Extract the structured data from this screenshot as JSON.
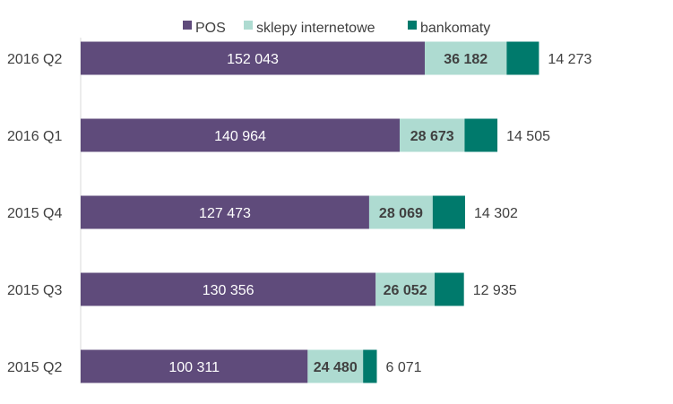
{
  "chart_data": {
    "type": "bar",
    "orientation": "horizontal",
    "stacked": true,
    "categories": [
      "2016 Q2",
      "2016 Q1",
      "2015 Q4",
      "2015 Q3",
      "2015 Q2"
    ],
    "series": [
      {
        "name": "POS",
        "color": "#5f4b7b",
        "values": [
          152043,
          140964,
          127473,
          130356,
          100311
        ],
        "labels": [
          "152 043",
          "140 964",
          "127 473",
          "130 356",
          "100 311"
        ]
      },
      {
        "name": "sklepy internetowe",
        "color": "#aedbd1",
        "values": [
          36182,
          28673,
          28069,
          26052,
          24480
        ],
        "labels": [
          "36 182",
          "28 673",
          "28 069",
          "26 052",
          "24 480"
        ]
      },
      {
        "name": "bankomaty",
        "color": "#007a6c",
        "values": [
          14273,
          14505,
          14302,
          12935,
          6071
        ],
        "labels": [
          "14 273",
          "14 505",
          "14 302",
          "12 935",
          "6 071"
        ]
      }
    ],
    "xlim": [
      0,
      260000
    ],
    "grid": false,
    "legend_position": "top"
  }
}
